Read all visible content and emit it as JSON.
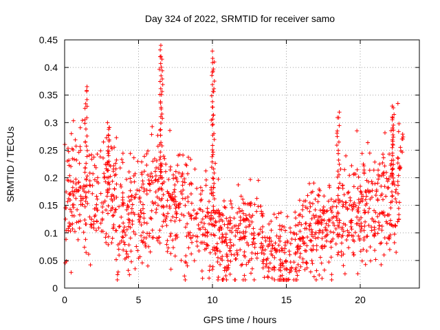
{
  "chart_data": {
    "type": "scatter",
    "title": "Day 324 of 2022, SRMTID for receiver samo",
    "xlabel": "GPS time / hours",
    "ylabel": "SRMTID / TECUs",
    "xlim": [
      0,
      24
    ],
    "ylim": [
      0,
      0.45
    ],
    "xticks": [
      0,
      5,
      10,
      15,
      20
    ],
    "xtick_labels": [
      "0",
      "5",
      "10",
      "15",
      "20"
    ],
    "yticks": [
      0,
      0.05,
      0.1,
      0.15,
      0.2,
      0.25,
      0.3,
      0.35,
      0.4,
      0.45
    ],
    "ytick_labels": [
      "0",
      "0.05",
      "0.1",
      "0.15",
      "0.2",
      "0.25",
      "0.3",
      "0.35",
      "0.4",
      "0.45"
    ],
    "grid": true,
    "marker": "+",
    "series": [
      {
        "name": "SRMTID",
        "color": "#ff0000",
        "x_range_hours": [
          0,
          22.9
        ],
        "trend": [
          [
            0.0,
            0.16
          ],
          [
            1.0,
            0.17
          ],
          [
            2.0,
            0.16
          ],
          [
            3.0,
            0.17
          ],
          [
            4.0,
            0.13
          ],
          [
            5.0,
            0.14
          ],
          [
            6.0,
            0.17
          ],
          [
            7.0,
            0.15
          ],
          [
            8.0,
            0.15
          ],
          [
            9.0,
            0.11
          ],
          [
            10.0,
            0.12
          ],
          [
            11.0,
            0.08
          ],
          [
            12.0,
            0.1
          ],
          [
            13.0,
            0.1
          ],
          [
            14.0,
            0.06
          ],
          [
            15.0,
            0.05
          ],
          [
            16.0,
            0.09
          ],
          [
            17.0,
            0.11
          ],
          [
            18.0,
            0.11
          ],
          [
            19.0,
            0.14
          ],
          [
            20.0,
            0.15
          ],
          [
            21.0,
            0.14
          ],
          [
            22.0,
            0.17
          ],
          [
            22.9,
            0.21
          ]
        ],
        "spikes": [
          {
            "x": 1.45,
            "peak": 0.37
          },
          {
            "x": 2.95,
            "peak": 0.3
          },
          {
            "x": 6.45,
            "peak": 0.44
          },
          {
            "x": 6.55,
            "peak": 0.42
          },
          {
            "x": 10.0,
            "peak": 0.43
          },
          {
            "x": 10.05,
            "peak": 0.41
          },
          {
            "x": 18.5,
            "peak": 0.32
          },
          {
            "x": 22.2,
            "peak": 0.33
          }
        ]
      }
    ]
  }
}
